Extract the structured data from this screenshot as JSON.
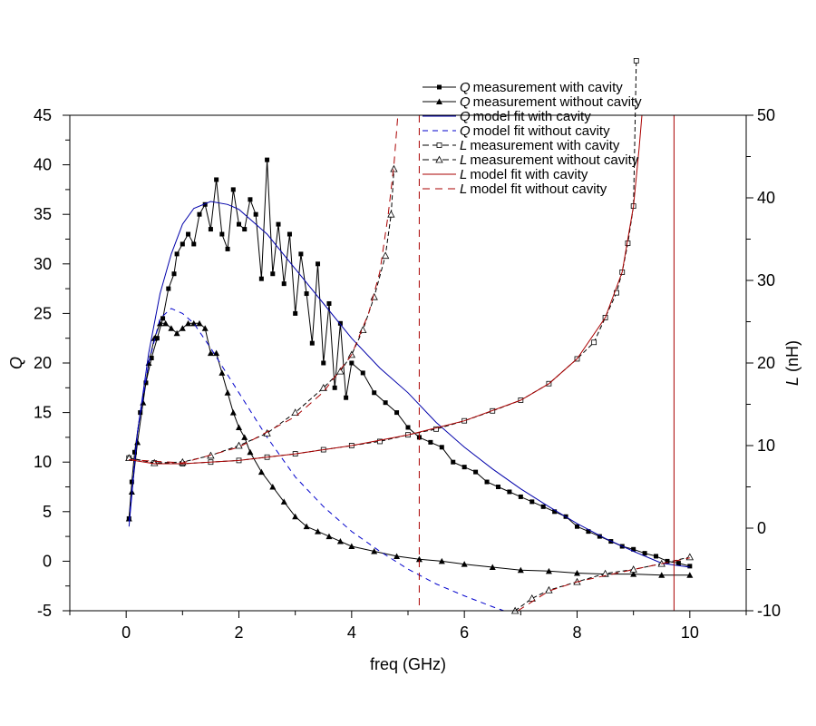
{
  "chart_data": {
    "type": "line",
    "title": "",
    "xlabel": "freq (GHz)",
    "ylabel": "Q",
    "y2label_italic": "L",
    "y2label_rest": " (nH)",
    "xlim": [
      -1,
      11
    ],
    "ylim": [
      -5,
      45
    ],
    "y2lim": [
      -10,
      50
    ],
    "xticks": [
      0,
      2,
      4,
      6,
      8,
      10
    ],
    "yticks": [
      -5,
      0,
      5,
      10,
      15,
      20,
      25,
      30,
      35,
      40,
      45
    ],
    "y2ticks": [
      -10,
      0,
      10,
      20,
      30,
      40,
      50
    ],
    "legend_position": "top-right",
    "series": [
      {
        "name_italic": "Q",
        "name": "measurement with cavity",
        "axis": "left",
        "color": "#000000",
        "dash": "",
        "marker": "square-filled",
        "points": [
          [
            0.05,
            4.3
          ],
          [
            0.1,
            8
          ],
          [
            0.15,
            11
          ],
          [
            0.25,
            15
          ],
          [
            0.35,
            18
          ],
          [
            0.45,
            20.5
          ],
          [
            0.55,
            22.5
          ],
          [
            0.65,
            24.5
          ],
          [
            0.75,
            27.5
          ],
          [
            0.85,
            29
          ],
          [
            0.9,
            31
          ],
          [
            1.0,
            32
          ],
          [
            1.1,
            33
          ],
          [
            1.2,
            32
          ],
          [
            1.3,
            35
          ],
          [
            1.4,
            36
          ],
          [
            1.5,
            33.5
          ],
          [
            1.6,
            38.5
          ],
          [
            1.7,
            33
          ],
          [
            1.8,
            31.5
          ],
          [
            1.9,
            37.5
          ],
          [
            2.0,
            34
          ],
          [
            2.1,
            33.5
          ],
          [
            2.2,
            36.5
          ],
          [
            2.3,
            35
          ],
          [
            2.4,
            28.5
          ],
          [
            2.5,
            40.5
          ],
          [
            2.6,
            29
          ],
          [
            2.7,
            34
          ],
          [
            2.8,
            28
          ],
          [
            2.9,
            33
          ],
          [
            3.0,
            25
          ],
          [
            3.1,
            31
          ],
          [
            3.2,
            27
          ],
          [
            3.3,
            22
          ],
          [
            3.4,
            30
          ],
          [
            3.5,
            20
          ],
          [
            3.6,
            26
          ],
          [
            3.7,
            17.5
          ],
          [
            3.8,
            24
          ],
          [
            3.9,
            16.5
          ],
          [
            4.0,
            20
          ],
          [
            4.2,
            19
          ],
          [
            4.4,
            17
          ],
          [
            4.6,
            16
          ],
          [
            4.8,
            15
          ],
          [
            5.0,
            13.5
          ],
          [
            5.2,
            12.5
          ],
          [
            5.4,
            12
          ],
          [
            5.6,
            11.5
          ],
          [
            5.8,
            10
          ],
          [
            6.0,
            9.5
          ],
          [
            6.2,
            9
          ],
          [
            6.4,
            8
          ],
          [
            6.6,
            7.5
          ],
          [
            6.8,
            7
          ],
          [
            7.0,
            6.5
          ],
          [
            7.2,
            6
          ],
          [
            7.4,
            5.5
          ],
          [
            7.6,
            5
          ],
          [
            7.8,
            4.5
          ],
          [
            8.0,
            3.5
          ],
          [
            8.2,
            3
          ],
          [
            8.4,
            2.5
          ],
          [
            8.6,
            2
          ],
          [
            8.8,
            1.5
          ],
          [
            9.0,
            1.2
          ],
          [
            9.2,
            0.8
          ],
          [
            9.4,
            0.5
          ],
          [
            9.6,
            0
          ],
          [
            9.8,
            -0.2
          ],
          [
            10.0,
            -0.5
          ]
        ]
      },
      {
        "name_italic": "Q",
        "name": "measurement without cavity",
        "axis": "left",
        "color": "#000000",
        "dash": "",
        "marker": "triangle-filled",
        "points": [
          [
            0.05,
            4.3
          ],
          [
            0.1,
            7
          ],
          [
            0.2,
            12
          ],
          [
            0.3,
            16
          ],
          [
            0.4,
            20
          ],
          [
            0.5,
            22.5
          ],
          [
            0.6,
            24
          ],
          [
            0.7,
            24
          ],
          [
            0.8,
            23.5
          ],
          [
            0.9,
            23
          ],
          [
            1.0,
            23.5
          ],
          [
            1.1,
            24
          ],
          [
            1.2,
            24
          ],
          [
            1.3,
            24
          ],
          [
            1.4,
            23.5
          ],
          [
            1.5,
            21
          ],
          [
            1.6,
            21
          ],
          [
            1.7,
            19
          ],
          [
            1.8,
            17
          ],
          [
            1.9,
            15
          ],
          [
            2.0,
            13.5
          ],
          [
            2.1,
            12.5
          ],
          [
            2.2,
            11
          ],
          [
            2.4,
            9
          ],
          [
            2.6,
            7.5
          ],
          [
            2.8,
            6
          ],
          [
            3.0,
            4.5
          ],
          [
            3.2,
            3.5
          ],
          [
            3.4,
            3
          ],
          [
            3.6,
            2.5
          ],
          [
            3.8,
            2
          ],
          [
            4.0,
            1.5
          ],
          [
            4.4,
            1
          ],
          [
            4.8,
            0.5
          ],
          [
            5.2,
            0.2
          ],
          [
            5.6,
            0
          ],
          [
            6.0,
            -0.3
          ],
          [
            6.5,
            -0.6
          ],
          [
            7.0,
            -0.9
          ],
          [
            7.5,
            -1.0
          ],
          [
            8.0,
            -1.2
          ],
          [
            8.5,
            -1.3
          ],
          [
            9.0,
            -1.3
          ],
          [
            9.5,
            -1.4
          ],
          [
            10.0,
            -1.4
          ]
        ]
      },
      {
        "name_italic": "Q",
        "name": "model fit with cavity",
        "axis": "left",
        "color": "#0000aa",
        "dash": "",
        "marker": "none",
        "points": [
          [
            0.05,
            3.5
          ],
          [
            0.2,
            13
          ],
          [
            0.4,
            21
          ],
          [
            0.6,
            27
          ],
          [
            0.8,
            31
          ],
          [
            1.0,
            34
          ],
          [
            1.2,
            35.6
          ],
          [
            1.5,
            36.3
          ],
          [
            1.8,
            36
          ],
          [
            2.0,
            35.5
          ],
          [
            2.5,
            33
          ],
          [
            3.0,
            29.5
          ],
          [
            3.5,
            26
          ],
          [
            4.0,
            22.5
          ],
          [
            4.5,
            19.5
          ],
          [
            5.0,
            17
          ],
          [
            5.5,
            14
          ],
          [
            6.0,
            11.5
          ],
          [
            6.5,
            9.3
          ],
          [
            7.0,
            7.3
          ],
          [
            7.5,
            5.5
          ],
          [
            8.0,
            3.8
          ],
          [
            8.5,
            2.3
          ],
          [
            9.0,
            1.0
          ],
          [
            9.5,
            -0.2
          ],
          [
            10.0,
            -0.6
          ]
        ]
      },
      {
        "name_italic": "Q",
        "name": "model fit without cavity",
        "axis": "left",
        "color": "#0000cc",
        "dash": "6,5",
        "marker": "none",
        "points": [
          [
            0.05,
            4
          ],
          [
            0.2,
            13
          ],
          [
            0.4,
            20
          ],
          [
            0.6,
            24.5
          ],
          [
            0.8,
            25.5
          ],
          [
            1.0,
            25
          ],
          [
            1.2,
            24
          ],
          [
            1.5,
            21.5
          ],
          [
            2.0,
            17
          ],
          [
            2.5,
            12.5
          ],
          [
            3.0,
            8.5
          ],
          [
            3.5,
            5.5
          ],
          [
            4.0,
            3
          ],
          [
            4.5,
            1
          ],
          [
            5.0,
            -0.8
          ],
          [
            5.5,
            -2.3
          ],
          [
            6.0,
            -3.5
          ],
          [
            6.5,
            -4.6
          ],
          [
            6.7,
            -5
          ]
        ]
      },
      {
        "name_italic": "L",
        "name": "measurement with cavity",
        "axis": "right",
        "color": "#000000",
        "dash": "5,3",
        "marker": "square-open",
        "points": [
          [
            0.05,
            8.5
          ],
          [
            0.5,
            7.9
          ],
          [
            1.0,
            7.8
          ],
          [
            1.5,
            8
          ],
          [
            2.0,
            8.2
          ],
          [
            2.5,
            8.6
          ],
          [
            3.0,
            9
          ],
          [
            3.5,
            9.5
          ],
          [
            4.0,
            10
          ],
          [
            4.5,
            10.5
          ],
          [
            5.0,
            11.3
          ],
          [
            5.5,
            12
          ],
          [
            6.0,
            13
          ],
          [
            6.5,
            14.2
          ],
          [
            7.0,
            15.5
          ],
          [
            7.5,
            17.5
          ],
          [
            8.0,
            20.5
          ],
          [
            8.3,
            22.5
          ],
          [
            8.5,
            25.5
          ],
          [
            8.7,
            28.5
          ],
          [
            8.8,
            31
          ],
          [
            8.9,
            34.5
          ],
          [
            9.0,
            39
          ],
          [
            9.05,
            56.6
          ]
        ]
      },
      {
        "name_italic": "L",
        "name": "measurement without cavity",
        "axis": "right",
        "color": "#000000",
        "dash": "5,3",
        "marker": "triangle-open",
        "points": [
          [
            0.05,
            8.5
          ],
          [
            0.5,
            7.9
          ],
          [
            1.0,
            8
          ],
          [
            1.5,
            8.8
          ],
          [
            2.0,
            10
          ],
          [
            2.5,
            11.5
          ],
          [
            3.0,
            14
          ],
          [
            3.5,
            17
          ],
          [
            3.8,
            19
          ],
          [
            4.0,
            21
          ],
          [
            4.2,
            24
          ],
          [
            4.4,
            28
          ],
          [
            4.6,
            33
          ],
          [
            4.7,
            38
          ],
          [
            4.75,
            43.5
          ],
          null,
          [
            6.9,
            -10
          ],
          [
            7.2,
            -8.5
          ],
          [
            7.5,
            -7.5
          ],
          [
            8.0,
            -6.5
          ],
          [
            8.5,
            -5.5
          ],
          [
            9.0,
            -5
          ],
          [
            9.5,
            -4.3
          ],
          [
            10.0,
            -3.5
          ]
        ]
      },
      {
        "name_italic": "L",
        "name": "model fit with cavity",
        "axis": "right",
        "color": "#aa0000",
        "dash": "",
        "marker": "none",
        "points": [
          [
            0.05,
            8.3
          ],
          [
            0.5,
            7.8
          ],
          [
            1.0,
            7.8
          ],
          [
            2.0,
            8.2
          ],
          [
            3.0,
            9
          ],
          [
            4.0,
            10
          ],
          [
            5.0,
            11.3
          ],
          [
            6.0,
            13
          ],
          [
            7.0,
            15.5
          ],
          [
            7.5,
            17.5
          ],
          [
            8.0,
            20.5
          ],
          [
            8.5,
            25.5
          ],
          [
            8.8,
            31
          ],
          [
            9.0,
            39
          ],
          [
            9.1,
            46
          ],
          [
            9.15,
            50
          ],
          null,
          [
            9.72,
            50
          ],
          [
            9.72,
            -10
          ]
        ]
      },
      {
        "name_italic": "L",
        "name": "model fit without cavity",
        "axis": "right",
        "color": "#aa0000",
        "dash": "8,6",
        "marker": "none",
        "points": [
          [
            0.05,
            8.3
          ],
          [
            1.0,
            7.9
          ],
          [
            2.0,
            9.8
          ],
          [
            3.0,
            13.5
          ],
          [
            3.5,
            16.5
          ],
          [
            4.0,
            21
          ],
          [
            4.3,
            26
          ],
          [
            4.5,
            31
          ],
          [
            4.65,
            38
          ],
          [
            4.75,
            44
          ],
          [
            4.82,
            50
          ],
          null,
          [
            5.2,
            50
          ],
          [
            5.2,
            -10
          ],
          null,
          [
            6.95,
            -10
          ],
          [
            7.5,
            -7.6
          ],
          [
            8.0,
            -6.5
          ],
          [
            9.0,
            -5
          ],
          [
            10.0,
            -3.6
          ]
        ]
      }
    ]
  }
}
